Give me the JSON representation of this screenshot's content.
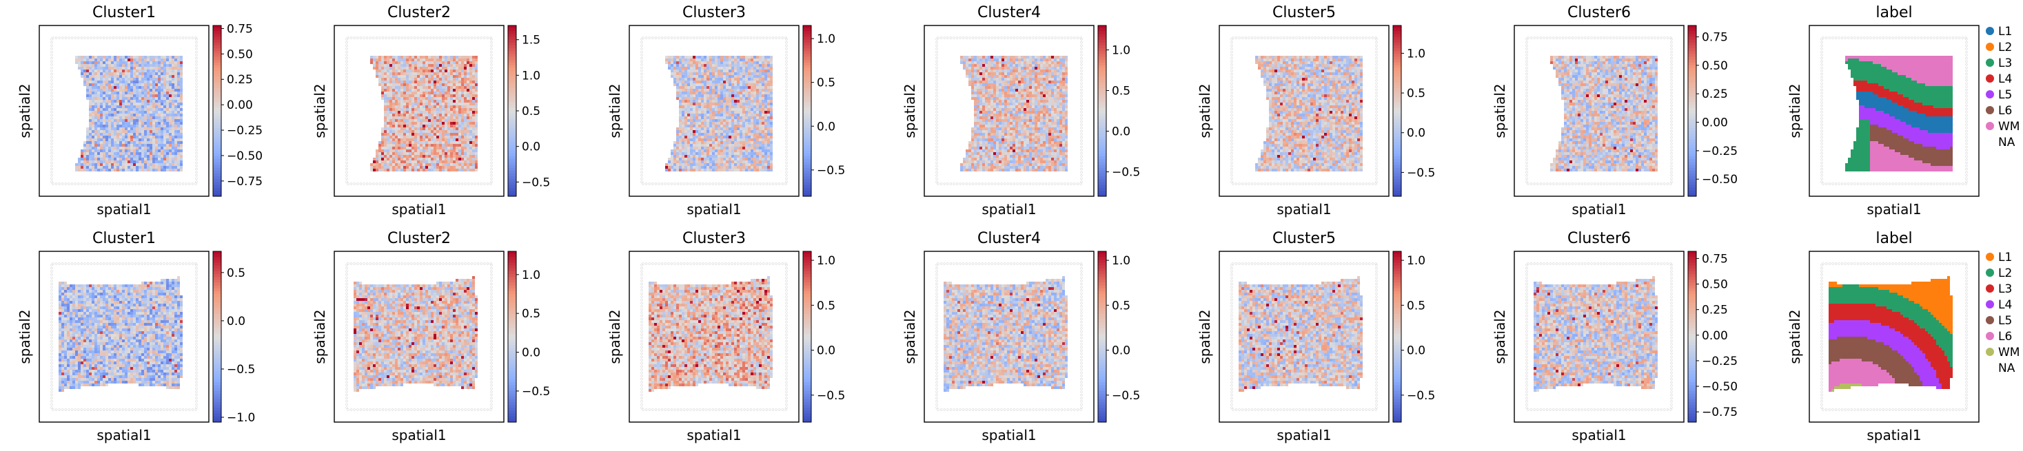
{
  "chart_data": [
    {
      "type": "heatmap",
      "title": "Cluster1",
      "xlabel": "spatial1",
      "ylabel": "spatial2",
      "shape": "top",
      "colorbar": {
        "cmap": "coolwarm",
        "range": [
          -0.9,
          0.78
        ],
        "ticks": [
          0.75,
          0.5,
          0.25,
          0.0,
          -0.25,
          -0.5,
          -0.75
        ],
        "tick_labels": [
          "0.75",
          "0.50",
          "0.25",
          "0.00",
          "−0.25",
          "−0.50",
          "−0.75"
        ]
      },
      "bias": -0.35
    },
    {
      "type": "heatmap",
      "title": "Cluster2",
      "xlabel": "spatial1",
      "ylabel": "spatial2",
      "shape": "top",
      "colorbar": {
        "cmap": "coolwarm",
        "range": [
          -0.7,
          1.7
        ],
        "ticks": [
          1.5,
          1.0,
          0.5,
          0.0,
          -0.5
        ],
        "tick_labels": [
          "1.5",
          "1.0",
          "0.5",
          "0.0",
          "−0.5"
        ]
      },
      "bias": 0.3
    },
    {
      "type": "heatmap",
      "title": "Cluster3",
      "xlabel": "spatial1",
      "ylabel": "spatial2",
      "shape": "top",
      "colorbar": {
        "cmap": "coolwarm",
        "range": [
          -0.8,
          1.15
        ],
        "ticks": [
          1.0,
          0.5,
          0.0,
          -0.5
        ],
        "tick_labels": [
          "1.0",
          "0.5",
          "0.0",
          "−0.5"
        ]
      },
      "bias": -0.1
    },
    {
      "type": "heatmap",
      "title": "Cluster4",
      "xlabel": "spatial1",
      "ylabel": "spatial2",
      "shape": "top",
      "colorbar": {
        "cmap": "coolwarm",
        "range": [
          -0.8,
          1.3
        ],
        "ticks": [
          1.0,
          0.5,
          0.0,
          -0.5
        ],
        "tick_labels": [
          "1.0",
          "0.5",
          "0.0",
          "−0.5"
        ]
      },
      "bias": 0.1
    },
    {
      "type": "heatmap",
      "title": "Cluster5",
      "xlabel": "spatial1",
      "ylabel": "spatial2",
      "shape": "top",
      "colorbar": {
        "cmap": "coolwarm",
        "range": [
          -0.8,
          1.35
        ],
        "ticks": [
          1.0,
          0.5,
          0.0,
          -0.5
        ],
        "tick_labels": [
          "1.0",
          "0.5",
          "0.0",
          "−0.5"
        ]
      },
      "bias": 0.05
    },
    {
      "type": "heatmap",
      "title": "Cluster6",
      "xlabel": "spatial1",
      "ylabel": "spatial2",
      "shape": "top",
      "colorbar": {
        "cmap": "coolwarm",
        "range": [
          -0.65,
          0.85
        ],
        "ticks": [
          0.75,
          0.5,
          0.25,
          0.0,
          -0.25,
          -0.5
        ],
        "tick_labels": [
          "0.75",
          "0.50",
          "0.25",
          "0.00",
          "−0.25",
          "−0.50"
        ]
      },
      "bias": -0.05
    },
    {
      "type": "heatmap",
      "title": "label",
      "xlabel": "spatial1",
      "ylabel": "spatial2",
      "shape": "top",
      "categorical": true,
      "legend": [
        {
          "label": "L1",
          "color": "#1f77b4"
        },
        {
          "label": "L2",
          "color": "#ff7f0e"
        },
        {
          "label": "L3",
          "color": "#279e68"
        },
        {
          "label": "L4",
          "color": "#d62728"
        },
        {
          "label": "L5",
          "color": "#aa40fc"
        },
        {
          "label": "L6",
          "color": "#8c564b"
        },
        {
          "label": "WM",
          "color": "#e377c2"
        },
        {
          "label": "NA",
          "color": null
        }
      ]
    },
    {
      "type": "heatmap",
      "title": "Cluster1",
      "xlabel": "spatial1",
      "ylabel": "spatial2",
      "shape": "bottom",
      "colorbar": {
        "cmap": "coolwarm",
        "range": [
          -1.05,
          0.72
        ],
        "ticks": [
          0.5,
          0.0,
          -0.5,
          -1.0
        ],
        "tick_labels": [
          "0.5",
          "0.0",
          "−0.5",
          "−1.0"
        ]
      },
      "bias": -0.35
    },
    {
      "type": "heatmap",
      "title": "Cluster2",
      "xlabel": "spatial1",
      "ylabel": "spatial2",
      "shape": "bottom",
      "colorbar": {
        "cmap": "coolwarm",
        "range": [
          -0.9,
          1.3
        ],
        "ticks": [
          1.0,
          0.5,
          0.0,
          -0.5
        ],
        "tick_labels": [
          "1.0",
          "0.5",
          "0.0",
          "−0.5"
        ]
      },
      "bias": 0.1
    },
    {
      "type": "heatmap",
      "title": "Cluster3",
      "xlabel": "spatial1",
      "ylabel": "spatial2",
      "shape": "bottom",
      "colorbar": {
        "cmap": "coolwarm",
        "range": [
          -0.8,
          1.1
        ],
        "ticks": [
          1.0,
          0.5,
          0.0,
          -0.5
        ],
        "tick_labels": [
          "1.0",
          "0.5",
          "0.0",
          "−0.5"
        ]
      },
      "bias": 0.35
    },
    {
      "type": "heatmap",
      "title": "Cluster4",
      "xlabel": "spatial1",
      "ylabel": "spatial2",
      "shape": "bottom",
      "colorbar": {
        "cmap": "coolwarm",
        "range": [
          -0.8,
          1.1
        ],
        "ticks": [
          1.0,
          0.5,
          0.0,
          -0.5
        ],
        "tick_labels": [
          "1.0",
          "0.5",
          "0.0",
          "−0.5"
        ]
      },
      "bias": -0.05
    },
    {
      "type": "heatmap",
      "title": "Cluster5",
      "xlabel": "spatial1",
      "ylabel": "spatial2",
      "shape": "bottom",
      "colorbar": {
        "cmap": "coolwarm",
        "range": [
          -0.8,
          1.1
        ],
        "ticks": [
          1.0,
          0.5,
          0.0,
          -0.5
        ],
        "tick_labels": [
          "1.0",
          "0.5",
          "0.0",
          "−0.5"
        ]
      },
      "bias": 0.0
    },
    {
      "type": "heatmap",
      "title": "Cluster6",
      "xlabel": "spatial1",
      "ylabel": "spatial2",
      "shape": "bottom",
      "colorbar": {
        "cmap": "coolwarm",
        "range": [
          -0.85,
          0.82
        ],
        "ticks": [
          0.75,
          0.5,
          0.25,
          0.0,
          -0.25,
          -0.5,
          -0.75
        ],
        "tick_labels": [
          "0.75",
          "0.50",
          "0.25",
          "0.00",
          "−0.25",
          "−0.50",
          "−0.75"
        ]
      },
      "bias": -0.05
    },
    {
      "type": "heatmap",
      "title": "label",
      "xlabel": "spatial1",
      "ylabel": "spatial2",
      "shape": "bottom",
      "categorical": true,
      "legend": [
        {
          "label": "L1",
          "color": "#ff7f0e"
        },
        {
          "label": "L2",
          "color": "#279e68"
        },
        {
          "label": "L3",
          "color": "#d62728"
        },
        {
          "label": "L4",
          "color": "#aa40fc"
        },
        {
          "label": "L5",
          "color": "#8c564b"
        },
        {
          "label": "L6",
          "color": "#e377c2"
        },
        {
          "label": "WM",
          "color": "#b5bd61"
        },
        {
          "label": "NA",
          "color": null
        }
      ]
    }
  ]
}
